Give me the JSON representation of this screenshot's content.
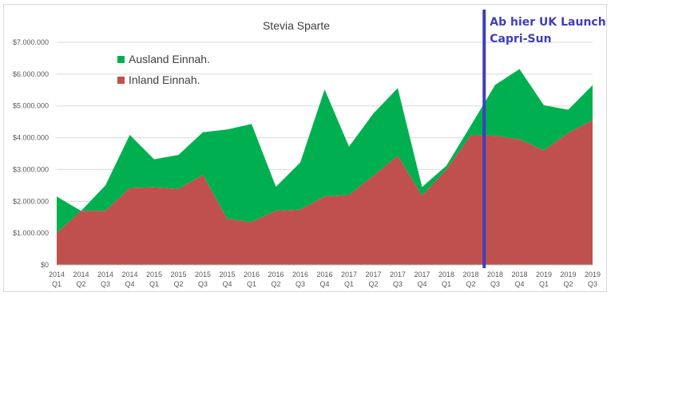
{
  "chart_data": {
    "type": "area",
    "title": "Stevia Sparte",
    "stacked": true,
    "categories": [
      {
        "year": "2014",
        "quarter": "Q1"
      },
      {
        "year": "2014",
        "quarter": "Q2"
      },
      {
        "year": "2014",
        "quarter": "Q3"
      },
      {
        "year": "2014",
        "quarter": "Q4"
      },
      {
        "year": "2015",
        "quarter": "Q1"
      },
      {
        "year": "2015",
        "quarter": "Q2"
      },
      {
        "year": "2015",
        "quarter": "Q3"
      },
      {
        "year": "2015",
        "quarter": "Q4"
      },
      {
        "year": "2016",
        "quarter": "Q1"
      },
      {
        "year": "2016",
        "quarter": "Q2"
      },
      {
        "year": "2016",
        "quarter": "Q3"
      },
      {
        "year": "2016",
        "quarter": "Q4"
      },
      {
        "year": "2017",
        "quarter": "Q1"
      },
      {
        "year": "2017",
        "quarter": "Q2"
      },
      {
        "year": "2017",
        "quarter": "Q3"
      },
      {
        "year": "2017",
        "quarter": "Q4"
      },
      {
        "year": "2018",
        "quarter": "Q1"
      },
      {
        "year": "2018",
        "quarter": "Q2"
      },
      {
        "year": "2018",
        "quarter": "Q3"
      },
      {
        "year": "2018",
        "quarter": "Q4"
      },
      {
        "year": "2019",
        "quarter": "Q1"
      },
      {
        "year": "2019",
        "quarter": "Q2"
      },
      {
        "year": "2019",
        "quarter": "Q3"
      }
    ],
    "series": [
      {
        "name": "Inland Einnah.",
        "color": "#c0504d",
        "values": [
          1000000,
          1700000,
          1700000,
          2420000,
          2440000,
          2390000,
          2830000,
          1450000,
          1350000,
          1700000,
          1740000,
          2150000,
          2200000,
          2800000,
          3430000,
          2180000,
          3000000,
          4080000,
          4060000,
          3950000,
          3600000,
          4150000,
          4550000
        ]
      },
      {
        "name": "Ausland Einnah.",
        "color": "#00b050",
        "values": [
          1150000,
          0,
          800000,
          1670000,
          880000,
          1070000,
          1340000,
          2810000,
          3080000,
          760000,
          1480000,
          3370000,
          1520000,
          1960000,
          2130000,
          270000,
          120000,
          300000,
          1600000,
          2210000,
          1420000,
          730000,
          1100000
        ]
      }
    ],
    "ylim": [
      0,
      7000000
    ],
    "yticks": [
      0,
      1000000,
      2000000,
      3000000,
      4000000,
      5000000,
      6000000,
      7000000
    ],
    "ytick_labels": [
      "$0",
      "$1.000.000",
      "$2.000.000",
      "$3.000.000",
      "$4.000.000",
      "$5.000.000",
      "$6.000.000",
      "$7.000.000"
    ],
    "grid": true,
    "legend": {
      "placement": "top-left",
      "order": [
        "Ausland Einnah.",
        "Inland Einnah."
      ]
    },
    "annotation": {
      "lines": [
        "Ab hier UK Launch",
        "Capri-Sun"
      ],
      "x_position": 17.55,
      "color": "#3f3fb8"
    }
  }
}
